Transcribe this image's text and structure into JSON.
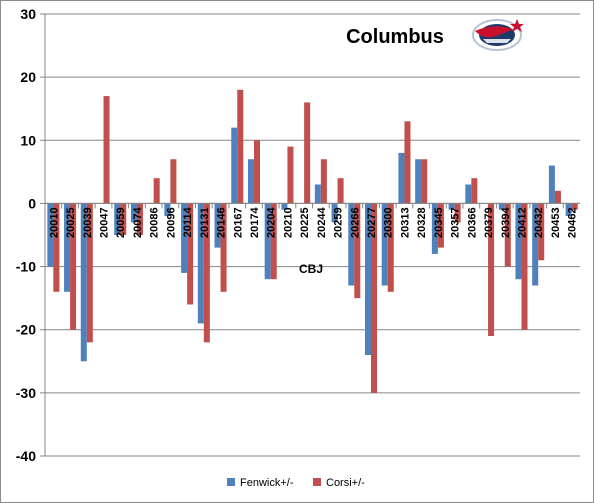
{
  "chart_data": {
    "type": "bar",
    "title": "Columbus",
    "xlabel": "CBJ",
    "ylabel": "",
    "ylim": [
      -40,
      30
    ],
    "yticks": [
      30,
      20,
      10,
      0,
      -10,
      -20,
      -30,
      -40
    ],
    "grid": true,
    "legend_position": "bottom",
    "logo_icon": "columbus-blue-jackets-logo-icon",
    "categories": [
      "20010",
      "20025",
      "20039",
      "20047",
      "20059",
      "20074",
      "20086",
      "20096",
      "20114",
      "20131",
      "20146",
      "20167",
      "20174",
      "20204",
      "20210",
      "20225",
      "20244",
      "20259",
      "20266",
      "20277",
      "20300",
      "20313",
      "20328",
      "20345",
      "20357",
      "20366",
      "20379",
      "20394",
      "20412",
      "20432",
      "20453",
      "20462"
    ],
    "series": [
      {
        "name": "Fenwick+/-",
        "color": "#4f81bd",
        "values": [
          -10,
          -14,
          -25,
          0,
          -5,
          -3,
          0,
          -2,
          -11,
          -19,
          -7,
          12,
          7,
          -12,
          -1,
          0,
          3,
          -3,
          -13,
          -24,
          -13,
          8,
          7,
          -8,
          -1,
          3,
          0,
          -1,
          -12,
          -13,
          6,
          -2
        ]
      },
      {
        "name": "Corsi+/-",
        "color": "#c0504d",
        "values": [
          -14,
          -20,
          -22,
          17,
          -5,
          -5,
          4,
          7,
          -16,
          -22,
          -14,
          18,
          10,
          -12,
          9,
          16,
          7,
          4,
          -15,
          -30,
          -14,
          13,
          7,
          -7,
          -3,
          4,
          -21,
          -10,
          -20,
          -9,
          2,
          -1
        ]
      }
    ]
  }
}
